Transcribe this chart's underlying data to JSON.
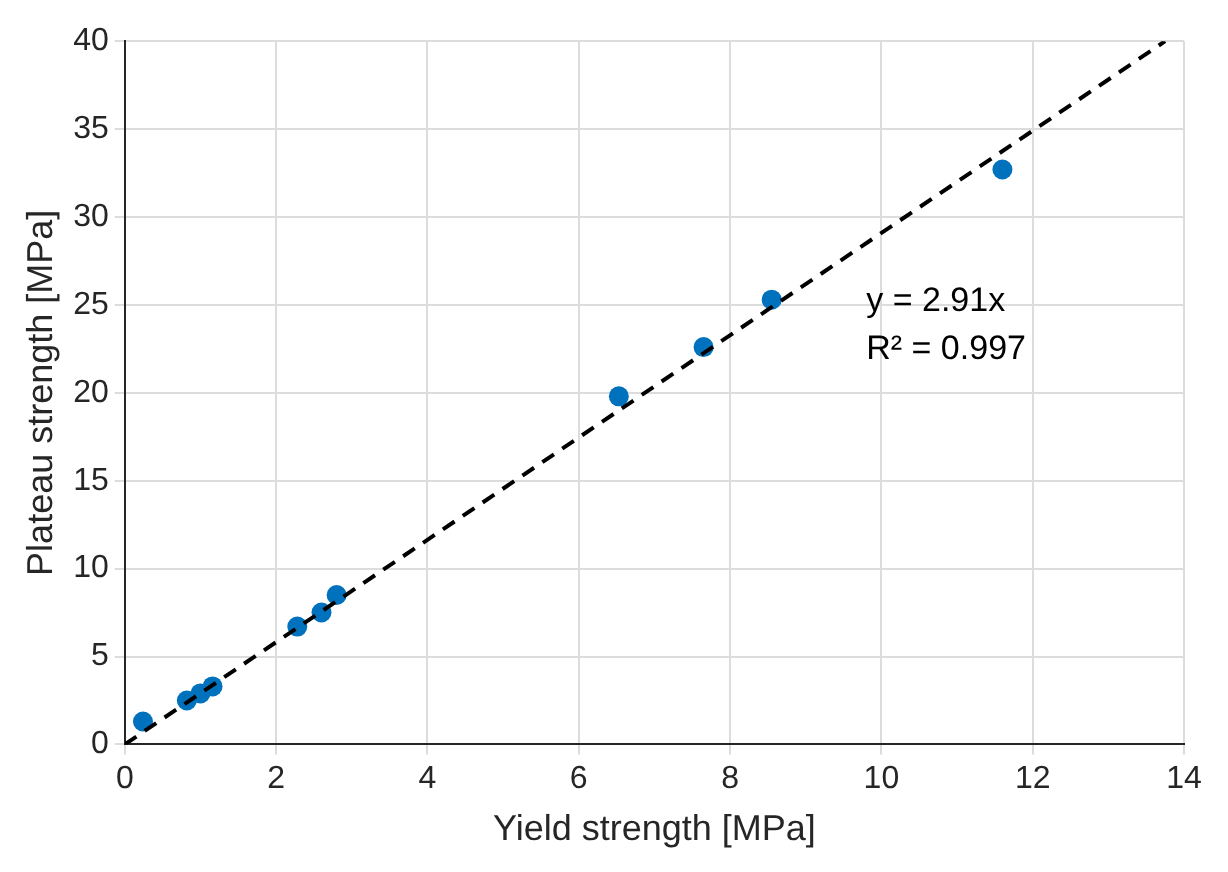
{
  "chart_data": {
    "type": "scatter",
    "xlabel": "Yield strength [MPa]",
    "ylabel": "Plateau strength [MPa]",
    "series": [
      {
        "type": "scatter",
        "color": "#0072bd",
        "marker": "circle",
        "x": [
          0.24,
          0.82,
          1.0,
          1.16,
          2.28,
          2.6,
          2.8,
          6.53,
          7.65,
          8.55,
          11.6
        ],
        "values": [
          1.3,
          2.5,
          2.9,
          3.3,
          6.7,
          7.5,
          8.5,
          19.8,
          22.6,
          25.3,
          32.7
        ]
      },
      {
        "type": "line",
        "color": "#000000",
        "line_style": "dashed",
        "marker": "none",
        "x": [
          0,
          13.75
        ],
        "values": [
          0,
          40.0
        ]
      }
    ],
    "annotations": [
      "y = 2.91x",
      "R² = 0.997"
    ],
    "xlim": [
      0,
      14
    ],
    "xticks": [
      0,
      2,
      4,
      6,
      8,
      10,
      12,
      14
    ],
    "ylim": [
      0,
      40
    ],
    "yticks": [
      0,
      5,
      10,
      15,
      20,
      25,
      30,
      35,
      40
    ],
    "grid": true,
    "legend": false
  }
}
